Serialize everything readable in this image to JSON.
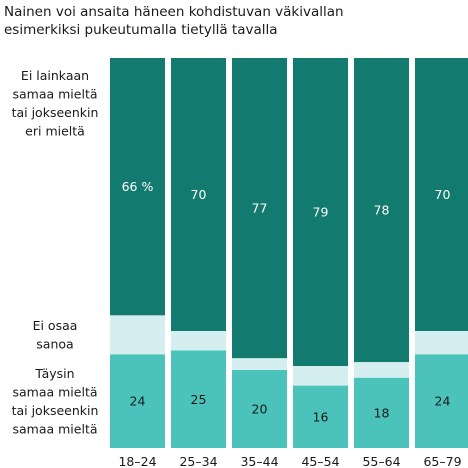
{
  "chart_data": {
    "type": "bar",
    "stacked": true,
    "title_lines": [
      "Nainen voi ansaita häneen kohdistuvan väkivallan",
      "esimerkiksi pukeutumalla tietyllä tavalla"
    ],
    "categories": [
      "18–24",
      "25–34",
      "35–44",
      "45–54",
      "55–64",
      "65–79"
    ],
    "ylim": [
      0,
      100
    ],
    "series": [
      {
        "key": "disagree",
        "legend_lines": [
          "Ei lainkaan",
          "samaa mieltä",
          "tai jokseenkin",
          "eri mieltä"
        ],
        "values": [
          66,
          70,
          77,
          79,
          78,
          70
        ],
        "value_labels": [
          "66 %",
          "70",
          "77",
          "79",
          "78",
          "70"
        ],
        "color": "#137a70",
        "label_color": "#ffffff"
      },
      {
        "key": "dont_know",
        "legend_lines": [
          "Ei osaa",
          "sanoa"
        ],
        "values": [
          10,
          5,
          3,
          5,
          4,
          6
        ],
        "color": "#d5eff1",
        "label_color": "#1a1a1a"
      },
      {
        "key": "agree",
        "legend_lines": [
          "Täysin",
          "samaa mieltä",
          "tai jokseenkin",
          "samaa mieltä"
        ],
        "values": [
          24,
          25,
          20,
          16,
          18,
          24
        ],
        "value_labels": [
          "24",
          "25",
          "20",
          "16",
          "18",
          "24"
        ],
        "color": "#4bc3bb",
        "label_color": "#1a1a1a"
      }
    ]
  }
}
